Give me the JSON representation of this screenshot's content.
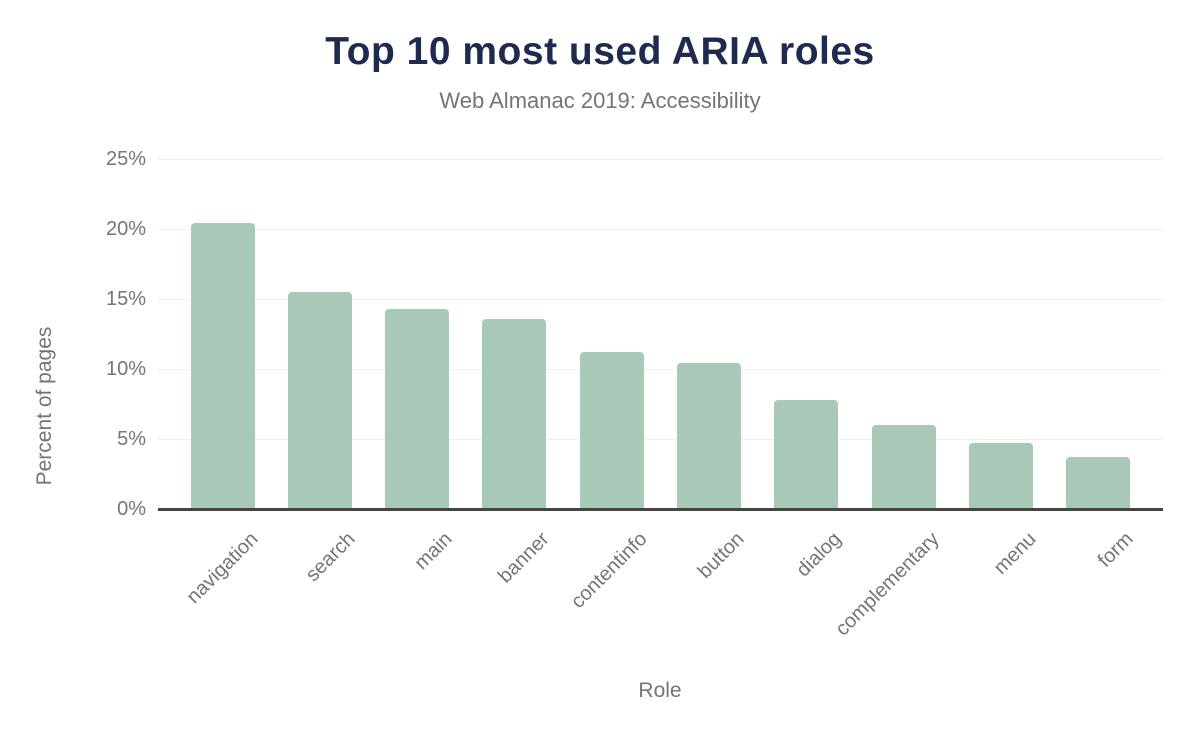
{
  "chart_data": {
    "type": "bar",
    "title": "Top 10 most used ARIA roles",
    "subtitle": "Web Almanac 2019: Accessibility",
    "xlabel": "Role",
    "ylabel": "Percent of pages",
    "categories": [
      "navigation",
      "search",
      "main",
      "banner",
      "contentinfo",
      "button",
      "dialog",
      "complementary",
      "menu",
      "form"
    ],
    "values": [
      20.4,
      15.5,
      14.3,
      13.6,
      11.2,
      10.4,
      7.8,
      6.0,
      4.7,
      3.7
    ],
    "unit": "%",
    "y_ticks": [
      "0%",
      "5%",
      "10%",
      "15%",
      "20%",
      "25%"
    ],
    "ylim": [
      0,
      25
    ],
    "grid": true,
    "legend": "none",
    "colors": {
      "bar": "#a8c9b8",
      "title": "#1f2b4e",
      "text": "#757575",
      "gridline": "#f0f0f0",
      "axis": "#444444",
      "background": "#ffffff"
    }
  }
}
